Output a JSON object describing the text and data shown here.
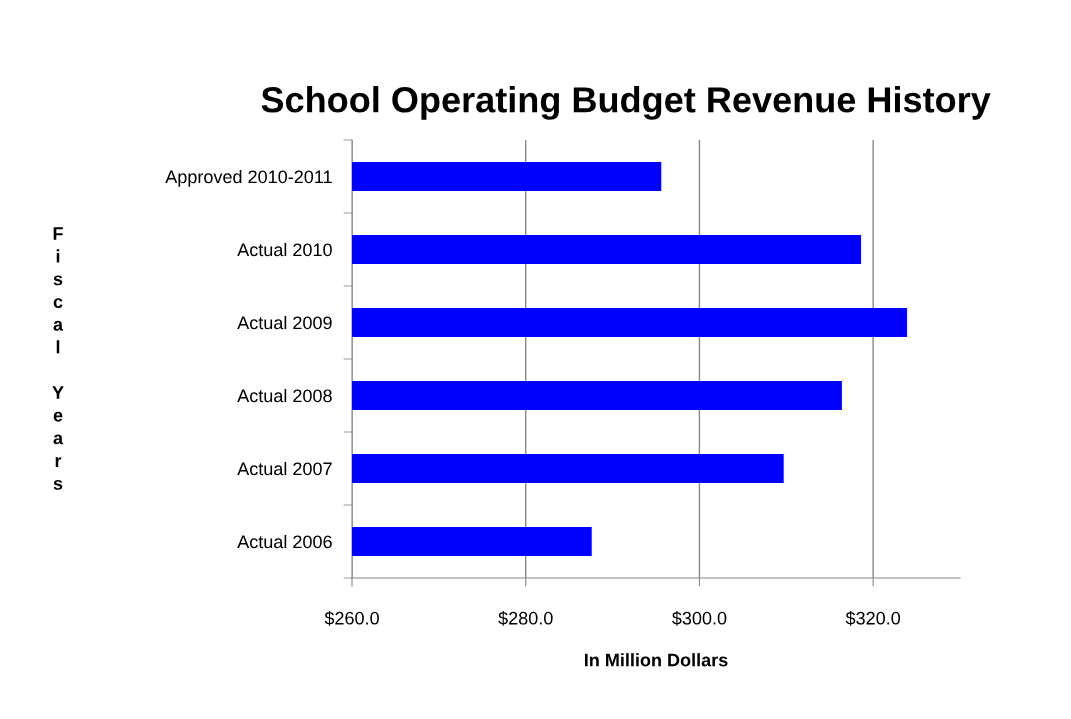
{
  "chart_data": {
    "type": "bar",
    "orientation": "horizontal",
    "title": "School Operating Budget Revenue History",
    "xlabel": "In Million Dollars",
    "ylabel": "Fiscal Years",
    "categories": [
      "Approved 2010-2011",
      "Actual 2010",
      "Actual 2009",
      "Actual 2008",
      "Actual 2007",
      "Actual 2006"
    ],
    "values": [
      295.6,
      318.6,
      323.9,
      316.4,
      309.7,
      287.6
    ],
    "color": "#0000ff",
    "xlim": [
      260,
      330
    ],
    "xticks": [
      {
        "value": 260,
        "label": "$260.0"
      },
      {
        "value": 280,
        "label": "$280.0"
      },
      {
        "value": 300,
        "label": "$300.0"
      },
      {
        "value": 320,
        "label": "$320.0"
      }
    ],
    "grid": "x",
    "legend": false
  }
}
